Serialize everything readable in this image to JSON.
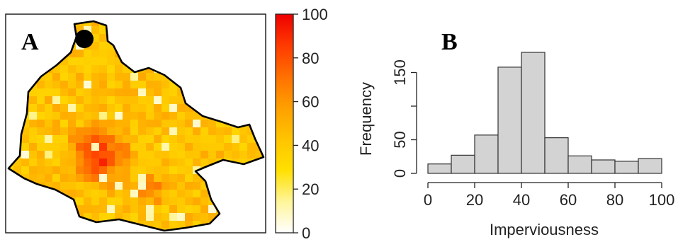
{
  "panel_a": {
    "label": "A",
    "colorbar": {
      "ticks": [
        "0",
        "20",
        "40",
        "60",
        "80",
        "100"
      ],
      "min": 0,
      "max": 100,
      "colors": [
        "#ffffff",
        "#fff59a",
        "#ffe000",
        "#ffc400",
        "#ffa000",
        "#ff7000",
        "#ff3a00",
        "#ee0000"
      ]
    },
    "marker": "outlet-point"
  },
  "panel_b": {
    "label": "B"
  },
  "chart_data": {
    "type": "bar",
    "subtype": "histogram",
    "title": "",
    "xlabel": "Imperviousness",
    "ylabel": "Frequency",
    "bins": [
      [
        0,
        10
      ],
      [
        10,
        20
      ],
      [
        20,
        30
      ],
      [
        30,
        40
      ],
      [
        40,
        50
      ],
      [
        50,
        60
      ],
      [
        60,
        70
      ],
      [
        70,
        80
      ],
      [
        80,
        90
      ],
      [
        90,
        100
      ]
    ],
    "values": [
      14,
      27,
      57,
      158,
      180,
      53,
      26,
      20,
      18,
      22
    ],
    "xlim": [
      0,
      100
    ],
    "ylim": [
      0,
      200
    ],
    "xticks": [
      "0",
      "20",
      "40",
      "60",
      "80",
      "100"
    ],
    "yticks": [
      "0",
      "50",
      "150"
    ],
    "bar_color": "#d3d3d3",
    "grid": false
  }
}
